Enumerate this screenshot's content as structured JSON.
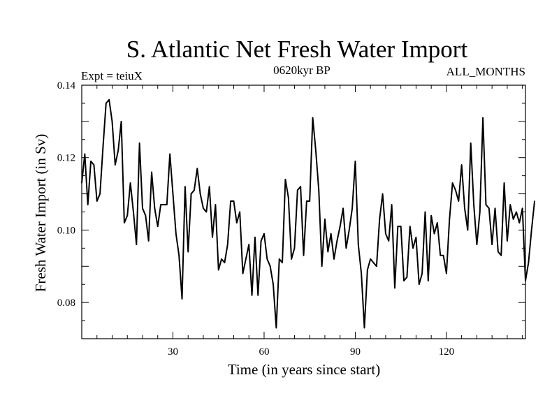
{
  "chart_data": {
    "type": "line",
    "title": "S. Atlantic Net Fresh Water Import",
    "subtitle_left": "Expt = teiuX",
    "subtitle_center": "0620kyr BP",
    "subtitle_right": "ALL_MONTHS",
    "xlabel": "Time (in years since start)",
    "ylabel": "Fresh Water Import (in Sv)",
    "xlim": [
      0,
      146
    ],
    "ylim": [
      0.07,
      0.14
    ],
    "x_ticks": [
      30,
      60,
      90,
      120
    ],
    "x_tick_labels": [
      "30",
      "60",
      "90",
      "120"
    ],
    "y_ticks": [
      0.08,
      0.1,
      0.12,
      0.14
    ],
    "y_tick_labels": [
      "0.08",
      "0.10",
      "0.12",
      "0.14"
    ],
    "series": [
      {
        "name": "Fresh Water Import",
        "color": "#000000",
        "x_start": 0,
        "x_step": 1,
        "values": [
          0.113,
          0.121,
          0.107,
          0.119,
          0.118,
          0.108,
          0.11,
          0.123,
          0.135,
          0.136,
          0.13,
          0.118,
          0.122,
          0.13,
          0.102,
          0.104,
          0.113,
          0.105,
          0.096,
          0.124,
          0.106,
          0.104,
          0.097,
          0.116,
          0.106,
          0.101,
          0.107,
          0.107,
          0.107,
          0.121,
          0.11,
          0.099,
          0.093,
          0.081,
          0.112,
          0.094,
          0.11,
          0.111,
          0.117,
          0.11,
          0.106,
          0.105,
          0.112,
          0.098,
          0.107,
          0.089,
          0.092,
          0.091,
          0.096,
          0.108,
          0.108,
          0.102,
          0.105,
          0.088,
          0.092,
          0.096,
          0.082,
          0.098,
          0.082,
          0.097,
          0.099,
          0.092,
          0.09,
          0.085,
          0.073,
          0.092,
          0.091,
          0.114,
          0.109,
          0.092,
          0.095,
          0.111,
          0.112,
          0.093,
          0.108,
          0.108,
          0.131,
          0.122,
          0.111,
          0.09,
          0.103,
          0.094,
          0.099,
          0.092,
          0.097,
          0.101,
          0.106,
          0.095,
          0.1,
          0.106,
          0.119,
          0.096,
          0.088,
          0.073,
          0.089,
          0.092,
          0.091,
          0.09,
          0.103,
          0.11,
          0.099,
          0.097,
          0.107,
          0.084,
          0.101,
          0.101,
          0.086,
          0.087,
          0.101,
          0.095,
          0.098,
          0.085,
          0.088,
          0.105,
          0.086,
          0.104,
          0.099,
          0.102,
          0.093,
          0.093,
          0.088,
          0.103,
          0.113,
          0.111,
          0.108,
          0.118,
          0.106,
          0.1,
          0.124,
          0.107,
          0.096,
          0.105,
          0.131,
          0.107,
          0.106,
          0.096,
          0.106,
          0.094,
          0.093,
          0.113,
          0.097,
          0.107,
          0.103,
          0.105,
          0.102,
          0.106,
          0.086,
          0.091,
          0.1,
          0.108
        ]
      }
    ]
  }
}
